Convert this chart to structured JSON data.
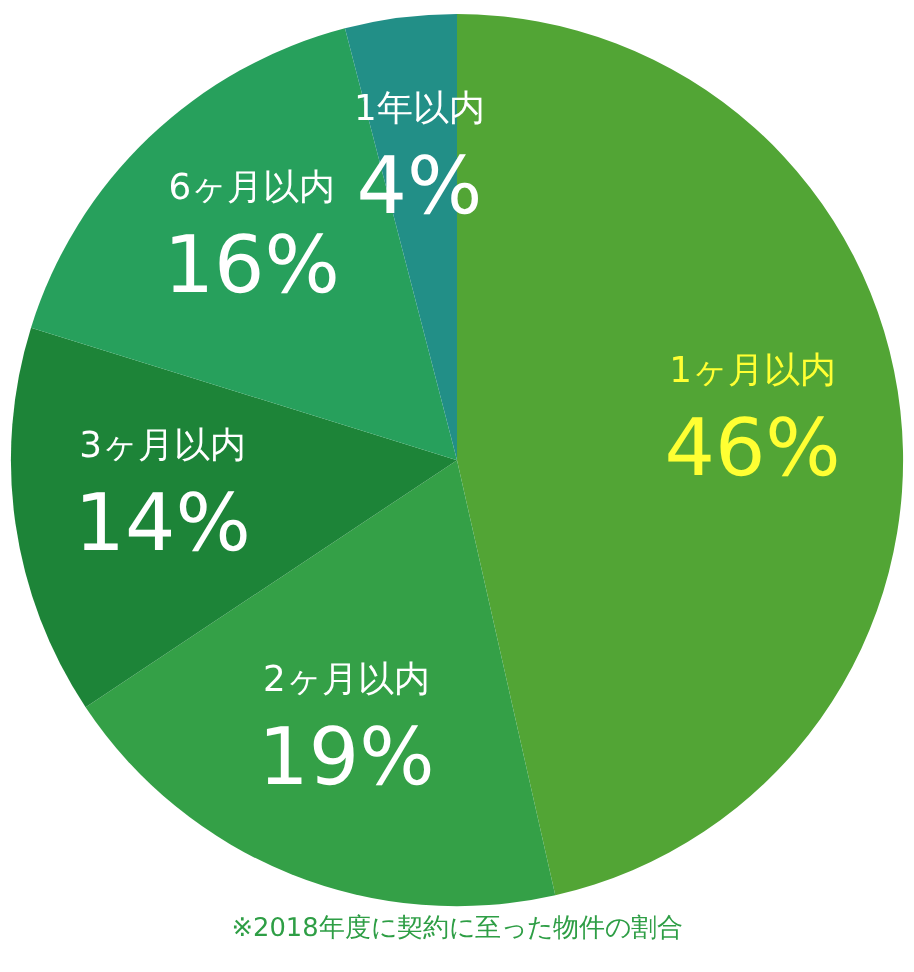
{
  "chart_data": {
    "type": "pie",
    "categories": [
      "1ヶ月以内",
      "2ヶ月以内",
      "3ヶ月以内",
      "6ヶ月以内",
      "1年以内"
    ],
    "values": [
      46,
      19,
      14,
      16,
      4
    ],
    "value_labels": [
      "46%",
      "19%",
      "14%",
      "16%",
      "4%"
    ],
    "colors": [
      "#52a535",
      "#34a047",
      "#1d8438",
      "#27a05c",
      "#228f87"
    ],
    "annotations": [
      "※2018年度に契約に至った物件の割合"
    ]
  }
}
